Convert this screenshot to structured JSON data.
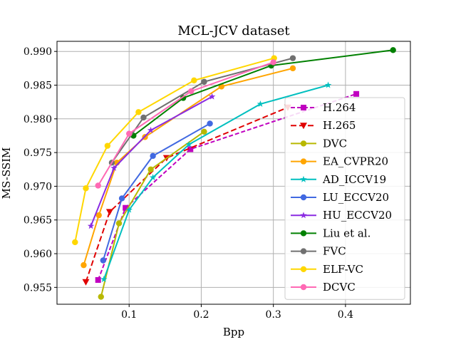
{
  "chart_data": {
    "type": "line",
    "title": "MCL-JCV dataset",
    "xlabel": "Bpp",
    "ylabel": "MS-SSIM",
    "xlim": [
      0.0,
      0.49
    ],
    "ylim": [
      0.9525,
      0.9915
    ],
    "xticks": [
      0.1,
      0.2,
      0.3,
      0.4
    ],
    "yticks": [
      0.955,
      0.96,
      0.965,
      0.97,
      0.975,
      0.98,
      0.985,
      0.99
    ],
    "xtick_labels": [
      "0.1",
      "0.2",
      "0.3",
      "0.4"
    ],
    "ytick_labels": [
      "0.955",
      "0.960",
      "0.965",
      "0.970",
      "0.975",
      "0.980",
      "0.985",
      "0.990"
    ],
    "grid": true,
    "legend_position": "right",
    "series": [
      {
        "name": "H.264",
        "color": "#c000c0",
        "marker": "square",
        "dash": "6,3",
        "x": [
          0.057,
          0.095,
          0.185,
          0.415
        ],
        "y": [
          0.9561,
          0.9668,
          0.9755,
          0.9837
        ]
      },
      {
        "name": "H.265",
        "color": "#e00000",
        "marker": "triangle-down",
        "dash": "8,4",
        "x": [
          0.04,
          0.073,
          0.152,
          0.32
        ],
        "y": [
          0.9558,
          0.9662,
          0.9742,
          0.9817
        ]
      },
      {
        "name": "DVC",
        "color": "#b8b800",
        "marker": "circle",
        "dash": "",
        "x": [
          0.061,
          0.086,
          0.13,
          0.204
        ],
        "y": [
          0.9536,
          0.9645,
          0.9725,
          0.9781
        ]
      },
      {
        "name": "EA_CVPR20",
        "color": "#ffa500",
        "marker": "circle",
        "dash": "",
        "x": [
          0.037,
          0.058,
          0.083,
          0.122,
          0.228,
          0.327
        ],
        "y": [
          0.9583,
          0.9657,
          0.9735,
          0.9773,
          0.9848,
          0.9875
        ]
      },
      {
        "name": "AD_ICCV19",
        "color": "#00bfbf",
        "marker": "star",
        "dash": "",
        "x": [
          0.065,
          0.1,
          0.133,
          0.183,
          0.282,
          0.376
        ],
        "y": [
          0.9562,
          0.9665,
          0.9713,
          0.9762,
          0.9822,
          0.985
        ]
      },
      {
        "name": "LU_ECCV20",
        "color": "#4169e1",
        "marker": "circle",
        "dash": "",
        "x": [
          0.064,
          0.09,
          0.133,
          0.212
        ],
        "y": [
          0.959,
          0.9682,
          0.9745,
          0.9793
        ]
      },
      {
        "name": "HU_ECCV20",
        "color": "#8a2be2",
        "marker": "star",
        "dash": "",
        "x": [
          0.047,
          0.079,
          0.13,
          0.215
        ],
        "y": [
          0.9641,
          0.9727,
          0.9783,
          0.9833
        ]
      },
      {
        "name": "Liu et al.",
        "color": "#008000",
        "marker": "circle",
        "dash": "",
        "x": [
          0.106,
          0.175,
          0.297,
          0.466
        ],
        "y": [
          0.9775,
          0.9831,
          0.9879,
          0.9902
        ]
      },
      {
        "name": "FVC",
        "color": "#707070",
        "marker": "circle",
        "dash": "",
        "x": [
          0.076,
          0.12,
          0.204,
          0.327
        ],
        "y": [
          0.9735,
          0.9802,
          0.9855,
          0.989
        ]
      },
      {
        "name": "ELF-VC",
        "color": "#ffd700",
        "marker": "circle",
        "dash": "",
        "x": [
          0.025,
          0.04,
          0.07,
          0.113,
          0.19,
          0.301
        ],
        "y": [
          0.9617,
          0.9697,
          0.976,
          0.981,
          0.9857,
          0.989
        ]
      },
      {
        "name": "DCVC",
        "color": "#ff69b4",
        "marker": "circle",
        "dash": "",
        "x": [
          0.057,
          0.1,
          0.186,
          0.3
        ],
        "y": [
          0.9701,
          0.9778,
          0.9841,
          0.9884
        ]
      }
    ]
  }
}
